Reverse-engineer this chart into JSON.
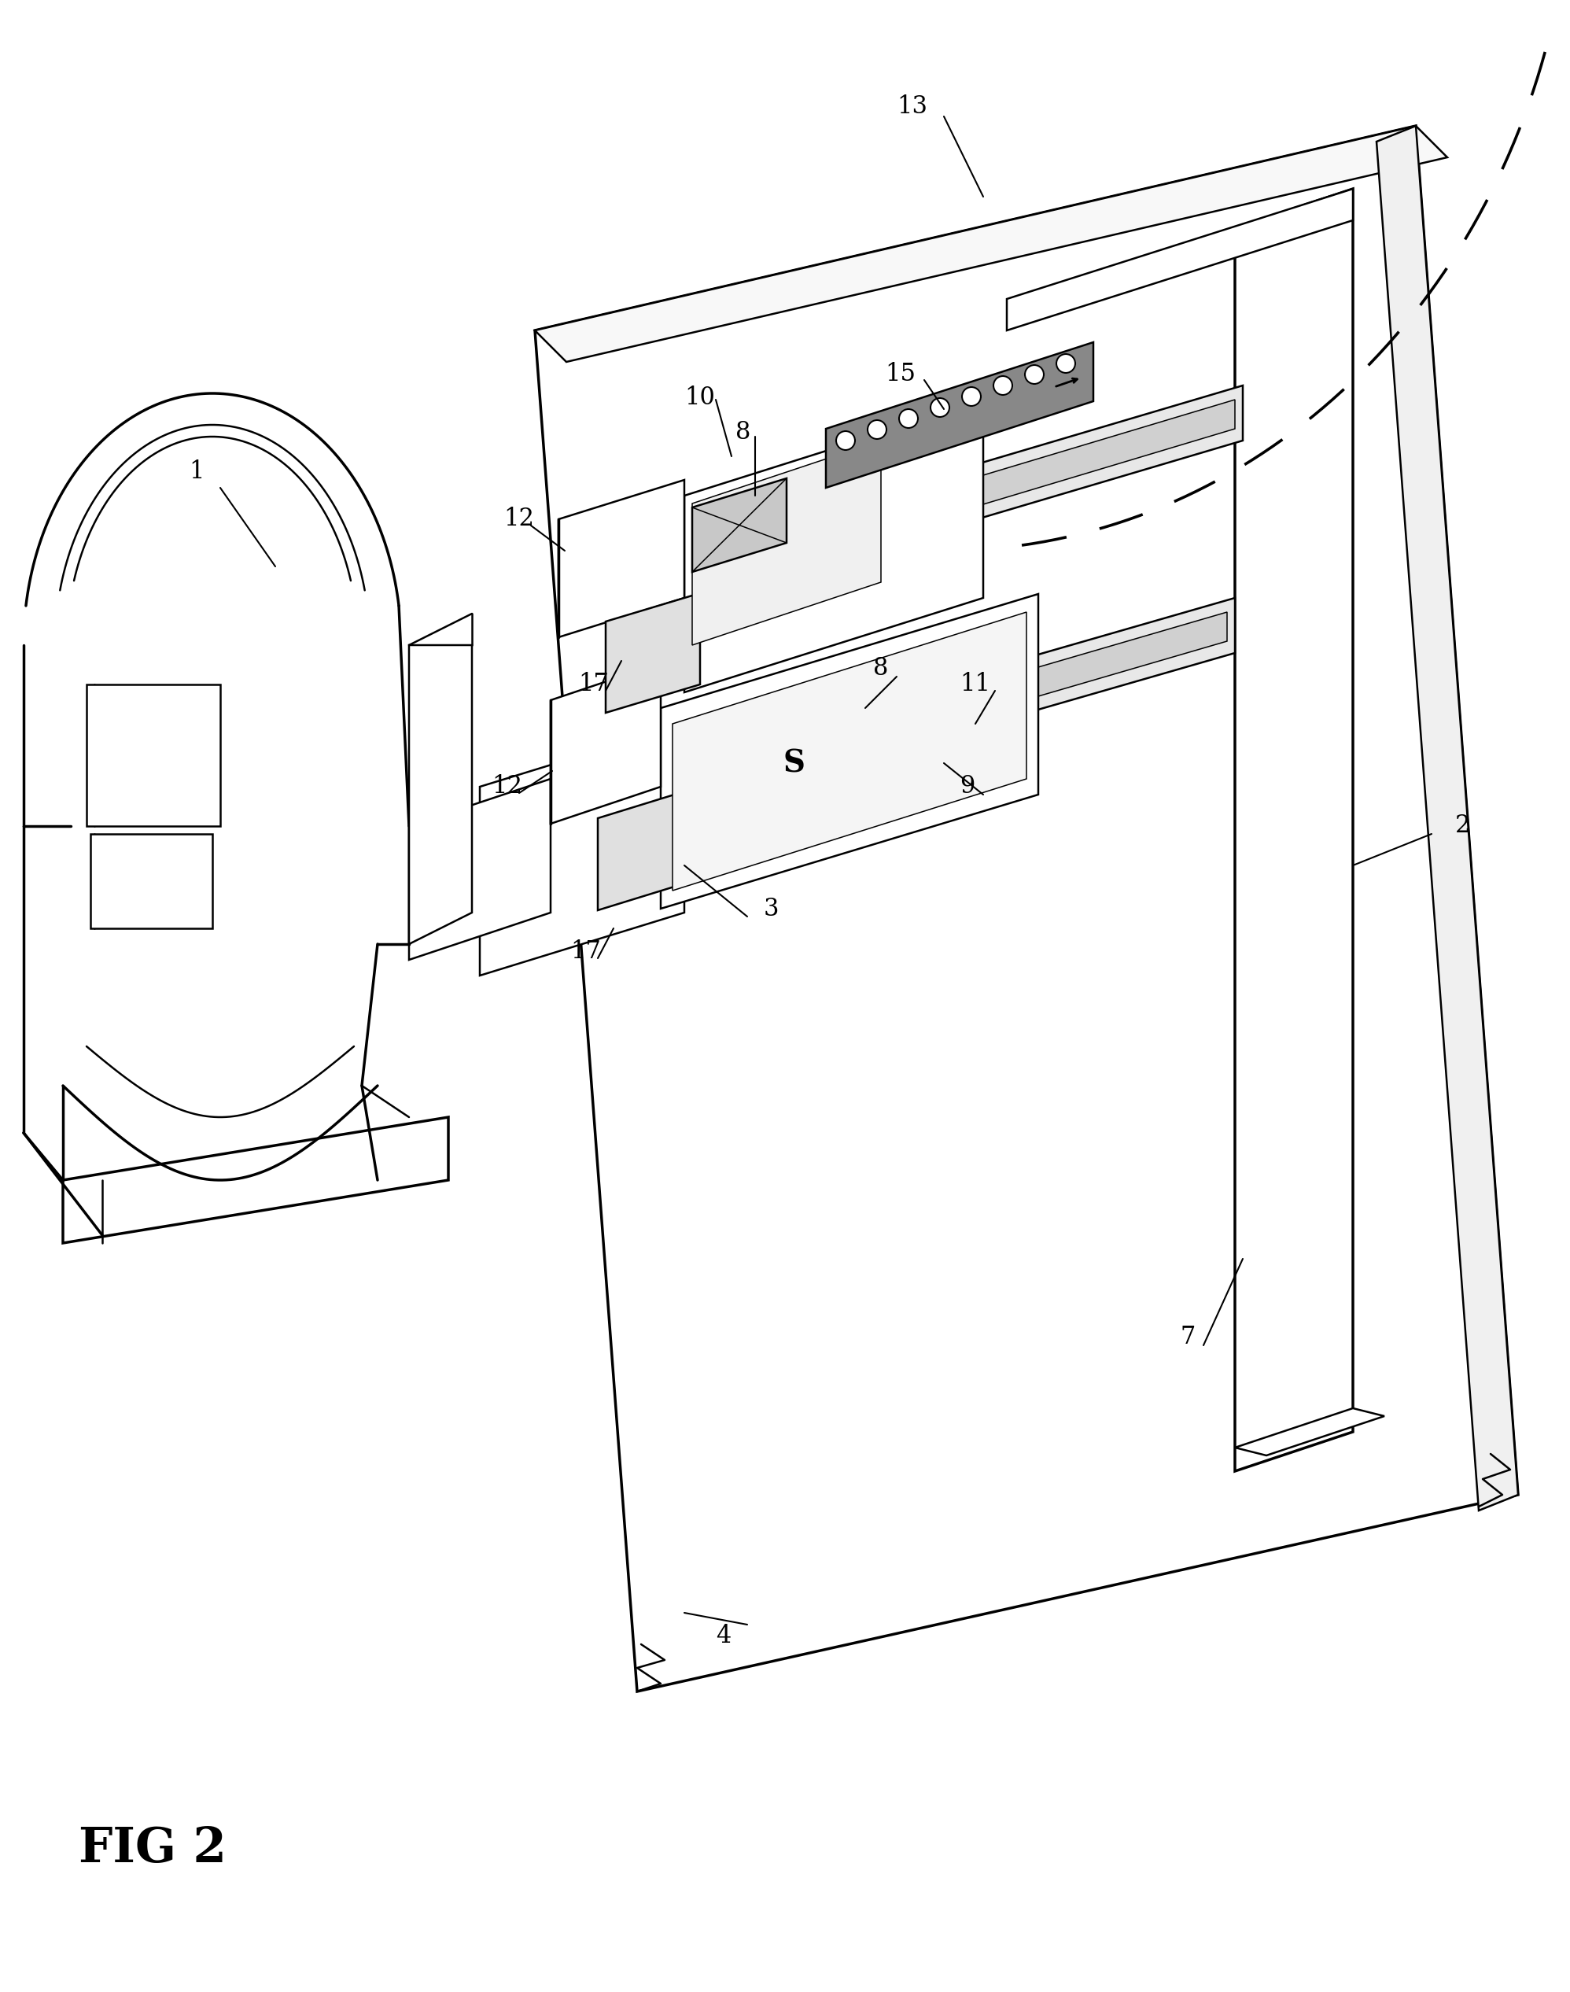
{
  "background_color": "#ffffff",
  "line_color": "#000000",
  "fig_label": "FIG 2",
  "lw_main": 1.8,
  "lw_thick": 2.5,
  "lw_thin": 1.1,
  "label_fontsize": 22,
  "caption_fontsize": 44
}
